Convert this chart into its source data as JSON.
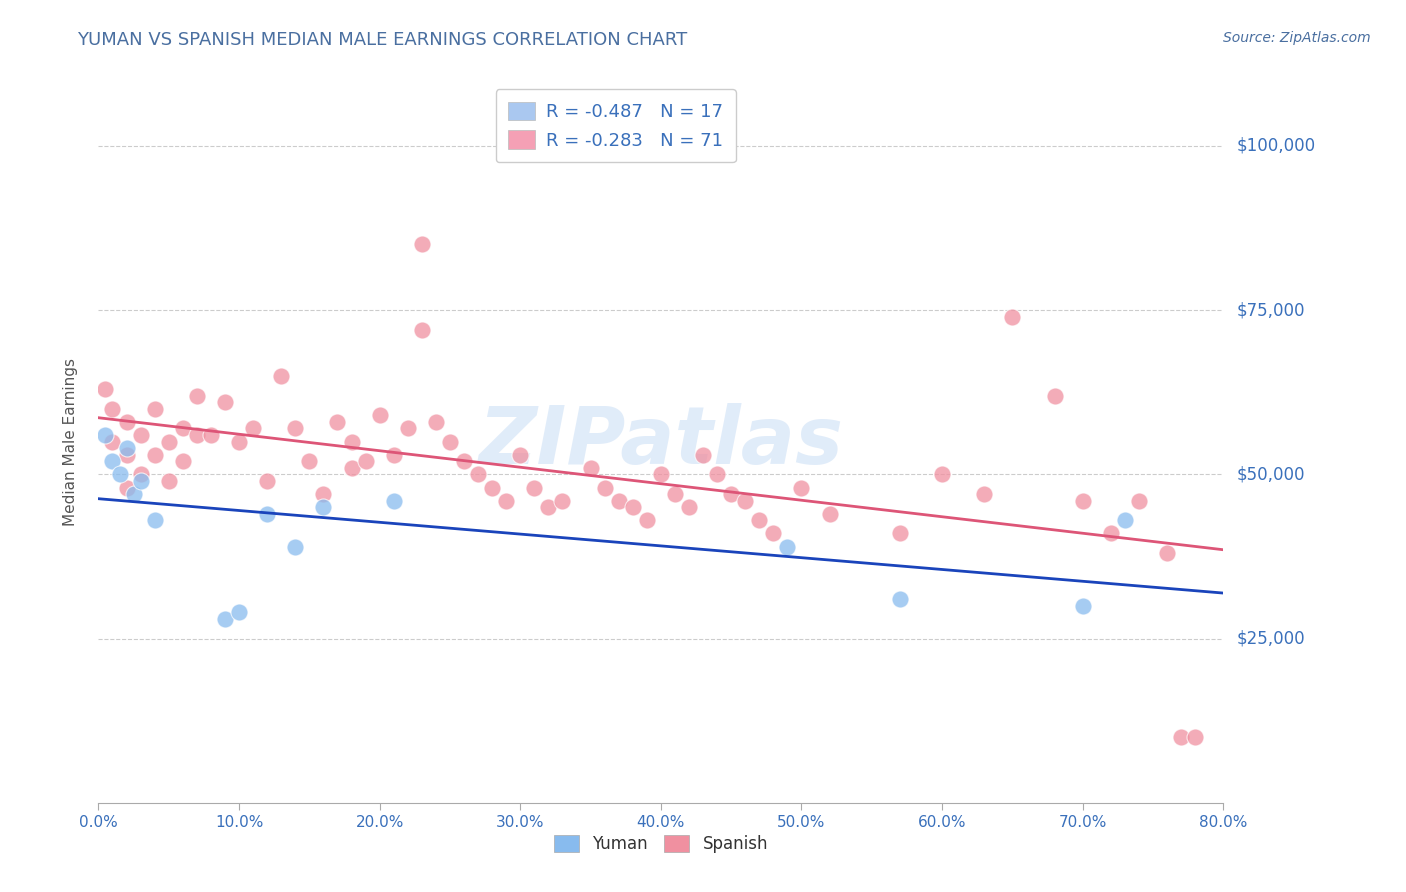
{
  "title": "YUMAN VS SPANISH MEDIAN MALE EARNINGS CORRELATION CHART",
  "source": "Source: ZipAtlas.com",
  "ylabel": "Median Male Earnings",
  "xlim": [
    0.0,
    0.8
  ],
  "ylim": [
    0,
    110000
  ],
  "yticks": [
    0,
    25000,
    50000,
    75000,
    100000
  ],
  "xtick_labels": [
    "0.0%",
    "10.0%",
    "20.0%",
    "30.0%",
    "40.0%",
    "50.0%",
    "60.0%",
    "70.0%",
    "80.0%"
  ],
  "xticks": [
    0.0,
    0.1,
    0.2,
    0.3,
    0.4,
    0.5,
    0.6,
    0.7,
    0.8
  ],
  "legend_entries": [
    {
      "label": "R = -0.487   N = 17",
      "color": "#aac8f0"
    },
    {
      "label": "R = -0.283   N = 71",
      "color": "#f5a0b5"
    }
  ],
  "yuman_color": "#88bbee",
  "spanish_color": "#f090a0",
  "trend_blue": "#1a44bb",
  "trend_pink": "#dd5577",
  "watermark": "ZIPatlas",
  "title_color": "#4a6fa0",
  "axis_label_color": "#555555",
  "tick_label_color": "#3a70bb",
  "grid_color": "#cccccc",
  "source_color": "#4a6fa0",
  "yuman_x": [
    0.005,
    0.01,
    0.015,
    0.02,
    0.025,
    0.03,
    0.04,
    0.09,
    0.1,
    0.12,
    0.14,
    0.16,
    0.21,
    0.49,
    0.57,
    0.7,
    0.73
  ],
  "yuman_y": [
    56000,
    52000,
    50000,
    54000,
    47000,
    49000,
    43000,
    28000,
    29000,
    44000,
    39000,
    45000,
    46000,
    39000,
    31000,
    30000,
    43000
  ],
  "spanish_x": [
    0.005,
    0.01,
    0.01,
    0.02,
    0.02,
    0.02,
    0.03,
    0.03,
    0.04,
    0.04,
    0.05,
    0.05,
    0.06,
    0.06,
    0.07,
    0.07,
    0.08,
    0.09,
    0.1,
    0.11,
    0.12,
    0.13,
    0.14,
    0.15,
    0.16,
    0.17,
    0.18,
    0.18,
    0.19,
    0.2,
    0.21,
    0.22,
    0.23,
    0.23,
    0.24,
    0.25,
    0.26,
    0.27,
    0.28,
    0.29,
    0.3,
    0.31,
    0.32,
    0.33,
    0.35,
    0.36,
    0.37,
    0.38,
    0.39,
    0.4,
    0.41,
    0.42,
    0.43,
    0.44,
    0.45,
    0.46,
    0.47,
    0.48,
    0.5,
    0.52,
    0.57,
    0.6,
    0.63,
    0.65,
    0.68,
    0.7,
    0.72,
    0.74,
    0.76,
    0.77,
    0.78
  ],
  "spanish_y": [
    63000,
    60000,
    55000,
    58000,
    53000,
    48000,
    56000,
    50000,
    60000,
    53000,
    55000,
    49000,
    57000,
    52000,
    62000,
    56000,
    56000,
    61000,
    55000,
    57000,
    49000,
    65000,
    57000,
    52000,
    47000,
    58000,
    55000,
    51000,
    52000,
    59000,
    53000,
    57000,
    85000,
    72000,
    58000,
    55000,
    52000,
    50000,
    48000,
    46000,
    53000,
    48000,
    45000,
    46000,
    51000,
    48000,
    46000,
    45000,
    43000,
    50000,
    47000,
    45000,
    53000,
    50000,
    47000,
    46000,
    43000,
    41000,
    48000,
    44000,
    41000,
    50000,
    47000,
    74000,
    62000,
    46000,
    41000,
    46000,
    38000,
    10000,
    10000
  ]
}
